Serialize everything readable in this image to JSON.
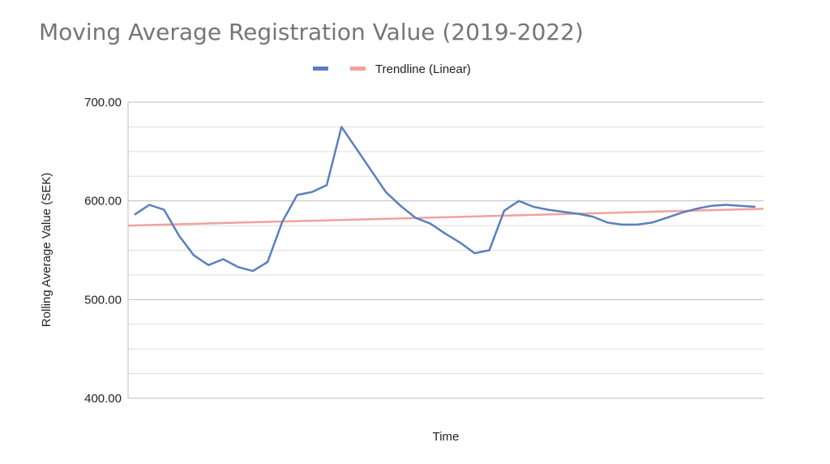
{
  "chart_data": {
    "type": "line",
    "title": "Moving Average Registration Value  (2019-2022)",
    "xlabel": "Time",
    "ylabel": "Rolling Average Value (SEK)",
    "ylim": [
      400,
      700
    ],
    "yticks": [
      "400.00",
      "500.00",
      "600.00",
      "700.00"
    ],
    "grid": true,
    "legend_position": "top-center",
    "series": [
      {
        "name": "",
        "color": "#5b7fbc",
        "values": [
          586,
          596,
          591,
          565,
          545,
          535,
          541,
          533,
          529,
          538,
          579,
          606,
          609,
          616,
          675,
          653,
          631,
          609,
          595,
          583,
          577,
          567,
          558,
          547,
          550,
          590,
          600,
          594,
          591,
          589,
          587,
          584,
          578,
          576,
          576,
          578,
          583,
          588,
          592,
          595,
          596,
          595,
          594
        ]
      },
      {
        "name": "Trendline (Linear)",
        "color": "#f0a29e",
        "trend": [
          575,
          592
        ]
      }
    ]
  }
}
